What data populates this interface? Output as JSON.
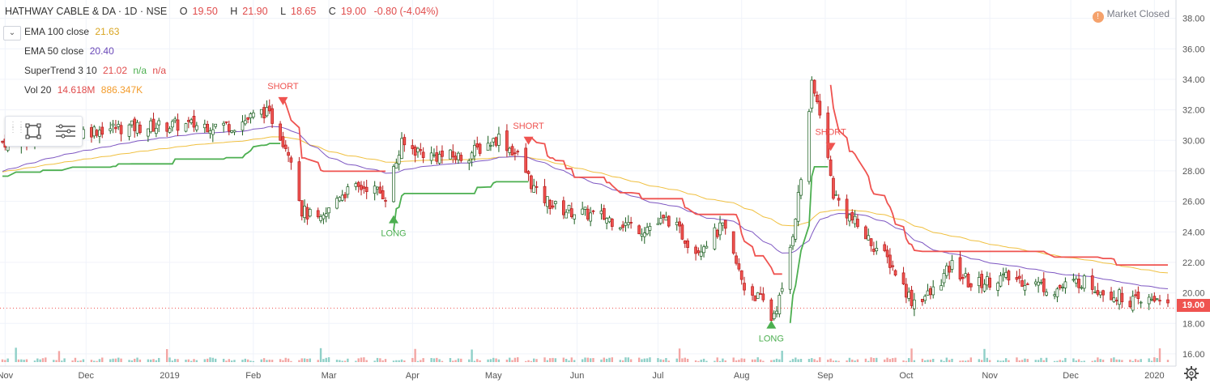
{
  "header": {
    "symbol": "HATHWAY CABLE & DA · 1D · NSE",
    "open_label": "O",
    "open": "19.50",
    "high_label": "H",
    "high": "21.90",
    "low_label": "L",
    "low": "18.65",
    "close_label": "C",
    "close": "19.00",
    "change": "-0.80 (-4.04%)"
  },
  "indicators": [
    {
      "name": "EMA 100 close",
      "value": "21.63",
      "color": "#e8b933"
    },
    {
      "name": "EMA 50 close",
      "value": "20.40",
      "color": "#6a48b8"
    },
    {
      "name": "SuperTrend 3 10",
      "value": "21.02",
      "extra1": "n/a",
      "extra2": "n/a",
      "color": "#e04b4b"
    },
    {
      "name": "Vol 20",
      "value": "14.618M",
      "extra1": "886.347K",
      "color": "#e04b4b",
      "extra_color": "#f39c2c"
    }
  ],
  "market_status": {
    "icon": "info-icon",
    "text": "Market Closed"
  },
  "last_price_tag": "19.00",
  "colors": {
    "up": "#26a69a",
    "candle_up": "#ffffff",
    "down": "#ef5350",
    "long": "#4caf50",
    "short": "#ef5350",
    "ema100": "#f0c040",
    "ema50": "#7e57c2"
  },
  "chart_data": {
    "type": "candlestick",
    "title": "HATHWAY CABLE & DA · 1D · NSE",
    "x_ticks": [
      "Nov",
      "Dec",
      "2019",
      "Feb",
      "Mar",
      "Apr",
      "May",
      "Jun",
      "Jul",
      "Aug",
      "Sep",
      "Oct",
      "Nov",
      "Dec",
      "2020"
    ],
    "y_ticks": [
      16,
      18,
      20,
      22,
      24,
      26,
      28,
      30,
      32,
      34,
      36,
      38
    ],
    "ylim": [
      15.2,
      39.2
    ],
    "grid": true,
    "signals": [
      {
        "label": "SHORT",
        "type": "short",
        "date": "2019-02-12",
        "price": 32.2
      },
      {
        "label": "LONG",
        "type": "long",
        "date": "2019-03-25",
        "price": 25.2
      },
      {
        "label": "SHORT",
        "type": "short",
        "date": "2019-05-14",
        "price": 29.6
      },
      {
        "label": "LONG",
        "type": "long",
        "date": "2019-08-12",
        "price": 18.3
      },
      {
        "label": "SHORT",
        "type": "short",
        "date": "2019-09-03",
        "price": 29.2
      }
    ],
    "close_anchors": [
      [
        "2018-10-31",
        29.9
      ],
      [
        "2018-11-10",
        30.2
      ],
      [
        "2018-11-25",
        30.5
      ],
      [
        "2018-12-10",
        30.8
      ],
      [
        "2019-01-05",
        31.0
      ],
      [
        "2019-01-25",
        31.0
      ],
      [
        "2019-02-05",
        31.9
      ],
      [
        "2019-02-08",
        31.4
      ],
      [
        "2019-02-15",
        29.0
      ],
      [
        "2019-02-19",
        25.4
      ],
      [
        "2019-02-26",
        24.6
      ],
      [
        "2019-03-05",
        26.5
      ],
      [
        "2019-03-15",
        27.0
      ],
      [
        "2019-03-22",
        26.4
      ],
      [
        "2019-03-28",
        29.7
      ],
      [
        "2019-04-08",
        29.0
      ],
      [
        "2019-04-20",
        28.9
      ],
      [
        "2019-05-03",
        30.2
      ],
      [
        "2019-05-10",
        29.0
      ],
      [
        "2019-05-17",
        26.5
      ],
      [
        "2019-05-25",
        25.5
      ],
      [
        "2019-06-10",
        25.0
      ],
      [
        "2019-06-25",
        24.2
      ],
      [
        "2019-07-05",
        24.8
      ],
      [
        "2019-07-15",
        22.8
      ],
      [
        "2019-07-25",
        24.3
      ],
      [
        "2019-08-02",
        20.4
      ],
      [
        "2019-08-09",
        19.4
      ],
      [
        "2019-08-12",
        18.3
      ],
      [
        "2019-08-16",
        20.0
      ],
      [
        "2019-08-20",
        24.0
      ],
      [
        "2019-08-23",
        27.5
      ],
      [
        "2019-08-27",
        33.5
      ],
      [
        "2019-08-30",
        32.0
      ],
      [
        "2019-09-04",
        26.5
      ],
      [
        "2019-09-10",
        25.0
      ],
      [
        "2019-09-17",
        23.5
      ],
      [
        "2019-09-25",
        22.0
      ],
      [
        "2019-10-03",
        19.5
      ],
      [
        "2019-10-10",
        19.9
      ],
      [
        "2019-10-18",
        21.8
      ],
      [
        "2019-10-25",
        20.5
      ],
      [
        "2019-11-05",
        21.0
      ],
      [
        "2019-11-15",
        20.8
      ],
      [
        "2019-11-25",
        20.2
      ],
      [
        "2019-12-05",
        20.8
      ],
      [
        "2019-12-15",
        20.0
      ],
      [
        "2019-12-27",
        19.3
      ],
      [
        "2020-01-03",
        19.8
      ],
      [
        "2020-01-06",
        19.0
      ]
    ]
  }
}
